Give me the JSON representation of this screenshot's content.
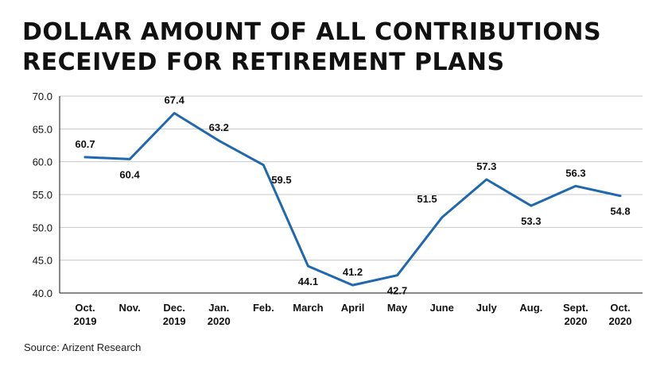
{
  "title": {
    "line1": "DOLLAR AMOUNT OF ALL CONTRIBUTIONS",
    "line2": "RECEIVED FOR RETIREMENT PLANS"
  },
  "source": "Source: Arizent Research",
  "colors": {
    "line": "#1f68b0",
    "grid": "#c8c8c8",
    "axis": "#111111"
  },
  "chart_data": {
    "type": "line",
    "title": "DOLLAR AMOUNT OF ALL CONTRIBUTIONS RECEIVED FOR RETIREMENT PLANS",
    "xlabel": "",
    "ylabel": "",
    "categories": [
      [
        "Oct.",
        "2019"
      ],
      [
        "Nov."
      ],
      [
        "Dec.",
        "2019"
      ],
      [
        "Jan.",
        "2020"
      ],
      [
        "Feb."
      ],
      [
        "March"
      ],
      [
        "April"
      ],
      [
        "May"
      ],
      [
        "June"
      ],
      [
        "July"
      ],
      [
        "Aug."
      ],
      [
        "Sept.",
        "2020"
      ],
      [
        "Oct.",
        "2020"
      ]
    ],
    "series": [
      {
        "values": [
          60.7,
          60.4,
          67.4,
          63.2,
          59.5,
          44.1,
          41.2,
          42.7,
          51.5,
          57.3,
          53.3,
          56.3,
          54.8
        ]
      }
    ],
    "ylim": [
      40.0,
      70.0
    ],
    "yticks": [
      "40.0",
      "45.0",
      "50.0",
      "55.0",
      "60.0",
      "65.0",
      "70.0"
    ],
    "data_labels": [
      "60.7",
      "60.4",
      "67.4",
      "63.2",
      "59.5",
      "44.1",
      "41.2",
      "42.7",
      "51.5",
      "57.3",
      "53.3",
      "56.3",
      "54.8"
    ],
    "grid": true,
    "legend": "none"
  }
}
